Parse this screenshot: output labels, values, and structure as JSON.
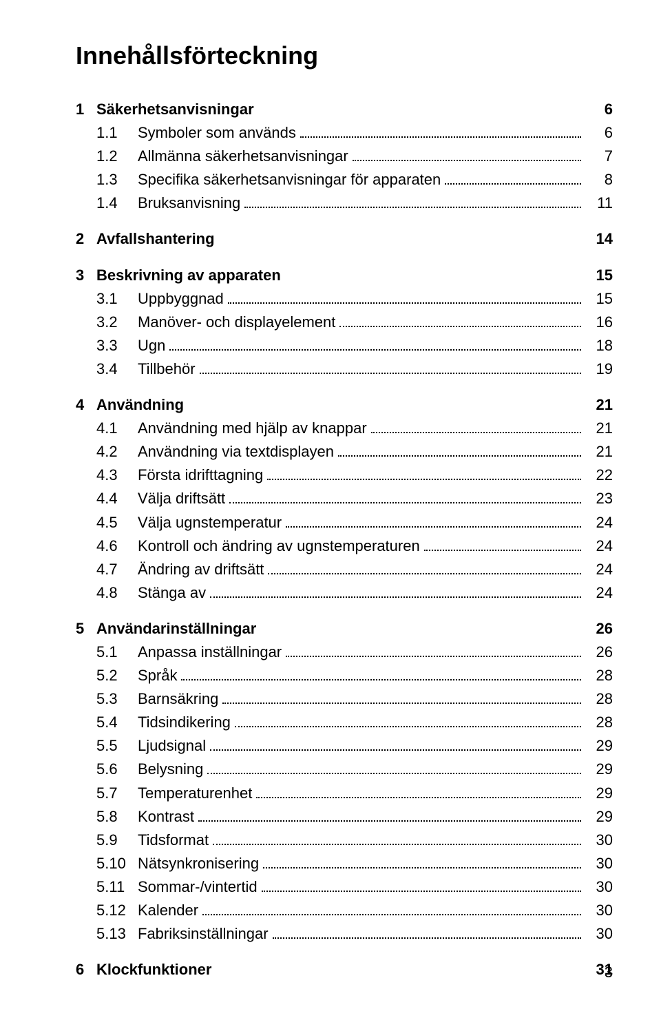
{
  "title": "Innehållsförteckning",
  "page_number": "3",
  "toc": [
    {
      "num": "1",
      "label": "Säkerhetsanvisningar",
      "page": "6",
      "level": 1
    },
    {
      "num": "1.1",
      "label": "Symboler som används",
      "page": "6",
      "level": 2
    },
    {
      "num": "1.2",
      "label": "Allmänna säkerhetsanvisningar",
      "page": "7",
      "level": 2
    },
    {
      "num": "1.3",
      "label": "Specifika säkerhetsanvisningar för apparaten",
      "page": "8",
      "level": 2
    },
    {
      "num": "1.4",
      "label": "Bruksanvisning",
      "page": "11",
      "level": 2
    },
    {
      "num": "2",
      "label": "Avfallshantering",
      "page": "14",
      "level": 1
    },
    {
      "num": "3",
      "label": "Beskrivning av apparaten",
      "page": "15",
      "level": 1
    },
    {
      "num": "3.1",
      "label": "Uppbyggnad",
      "page": "15",
      "level": 2
    },
    {
      "num": "3.2",
      "label": "Manöver- och displayelement",
      "page": "16",
      "level": 2
    },
    {
      "num": "3.3",
      "label": "Ugn",
      "page": "18",
      "level": 2
    },
    {
      "num": "3.4",
      "label": "Tillbehör",
      "page": "19",
      "level": 2
    },
    {
      "num": "4",
      "label": "Användning",
      "page": "21",
      "level": 1
    },
    {
      "num": "4.1",
      "label": "Användning med hjälp av knappar",
      "page": "21",
      "level": 2
    },
    {
      "num": "4.2",
      "label": "Användning via textdisplayen",
      "page": "21",
      "level": 2
    },
    {
      "num": "4.3",
      "label": "Första idrifttagning",
      "page": "22",
      "level": 2
    },
    {
      "num": "4.4",
      "label": "Välja driftsätt",
      "page": "23",
      "level": 2
    },
    {
      "num": "4.5",
      "label": "Välja ugnstemperatur",
      "page": "24",
      "level": 2
    },
    {
      "num": "4.6",
      "label": "Kontroll och ändring av ugnstemperaturen",
      "page": "24",
      "level": 2
    },
    {
      "num": "4.7",
      "label": "Ändring av driftsätt",
      "page": "24",
      "level": 2
    },
    {
      "num": "4.8",
      "label": "Stänga av",
      "page": "24",
      "level": 2
    },
    {
      "num": "5",
      "label": "Användarinställningar",
      "page": "26",
      "level": 1
    },
    {
      "num": "5.1",
      "label": "Anpassa inställningar",
      "page": "26",
      "level": 2
    },
    {
      "num": "5.2",
      "label": "Språk",
      "page": "28",
      "level": 2
    },
    {
      "num": "5.3",
      "label": "Barnsäkring",
      "page": "28",
      "level": 2
    },
    {
      "num": "5.4",
      "label": "Tidsindikering",
      "page": "28",
      "level": 2
    },
    {
      "num": "5.5",
      "label": "Ljudsignal",
      "page": "29",
      "level": 2
    },
    {
      "num": "5.6",
      "label": "Belysning",
      "page": "29",
      "level": 2
    },
    {
      "num": "5.7",
      "label": "Temperaturenhet",
      "page": "29",
      "level": 2
    },
    {
      "num": "5.8",
      "label": "Kontrast",
      "page": "29",
      "level": 2
    },
    {
      "num": "5.9",
      "label": "Tidsformat",
      "page": "30",
      "level": 2
    },
    {
      "num": "5.10",
      "label": "Nätsynkronisering",
      "page": "30",
      "level": 2
    },
    {
      "num": "5.11",
      "label": "Sommar-/vintertid",
      "page": "30",
      "level": 2
    },
    {
      "num": "5.12",
      "label": "Kalender",
      "page": "30",
      "level": 2
    },
    {
      "num": "5.13",
      "label": "Fabriksinställningar",
      "page": "30",
      "level": 2
    },
    {
      "num": "6",
      "label": "Klockfunktioner",
      "page": "31",
      "level": 1
    }
  ]
}
